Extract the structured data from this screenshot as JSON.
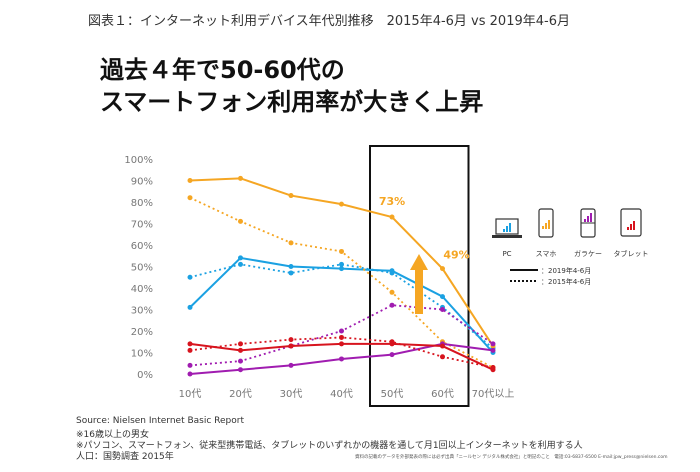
{
  "figure_title": "図表１：インターネット利用デバイス年代別推移　2015年4-6月 vs 2019年4-6月",
  "headline": {
    "line1": "過去４年で50-60代の",
    "line2": "スマートフォン利用率が大きく上昇"
  },
  "chart_data": {
    "type": "line",
    "categories": [
      "10代",
      "20代",
      "30代",
      "40代",
      "50代",
      "60代",
      "70代以上"
    ],
    "y_ticks": [
      "0%",
      "10%",
      "20%",
      "30%",
      "40%",
      "50%",
      "60%",
      "70%",
      "80%",
      "90%",
      "100%"
    ],
    "ylim": [
      0,
      100
    ],
    "highlight_categories": [
      "50代",
      "60代"
    ],
    "series": [
      {
        "name": "PC 2019年4-6月",
        "device": "PC",
        "period": "2019年4-6月",
        "style": "solid",
        "color": "#1BA1E2",
        "values": [
          31,
          54,
          50,
          49,
          48,
          36,
          10
        ]
      },
      {
        "name": "PC 2015年4-6月",
        "device": "PC",
        "period": "2015年4-6月",
        "style": "dotted",
        "color": "#1BA1E2",
        "values": [
          45,
          51,
          47,
          51,
          47,
          31,
          12
        ]
      },
      {
        "name": "スマホ 2019年4-6月",
        "device": "スマホ",
        "period": "2019年4-6月",
        "style": "solid",
        "color": "#F5A623",
        "values": [
          90,
          91,
          83,
          79,
          73,
          49,
          13
        ]
      },
      {
        "name": "スマホ 2015年4-6月",
        "device": "スマホ",
        "period": "2015年4-6月",
        "style": "dotted",
        "color": "#F5A623",
        "values": [
          82,
          71,
          61,
          57,
          38,
          15,
          3
        ]
      },
      {
        "name": "ガラケー 2019年4-6月",
        "device": "ガラケー",
        "period": "2019年4-6月",
        "style": "solid",
        "color": "#A01CB0",
        "values": [
          0,
          2,
          4,
          7,
          9,
          14,
          11
        ]
      },
      {
        "name": "ガラケー 2015年4-6月",
        "device": "ガラケー",
        "period": "2015年4-6月",
        "style": "dotted",
        "color": "#A01CB0",
        "values": [
          4,
          6,
          13,
          20,
          32,
          30,
          14
        ]
      },
      {
        "name": "タブレット 2019年4-6月",
        "device": "タブレット",
        "period": "2019年4-6月",
        "style": "solid",
        "color": "#D7141E",
        "values": [
          14,
          11,
          13,
          14,
          14,
          13,
          2
        ]
      },
      {
        "name": "タブレット 2015年4-6月",
        "device": "タブレット",
        "period": "2015年4-6月",
        "style": "dotted",
        "color": "#D7141E",
        "values": [
          11,
          14,
          16,
          17,
          15,
          8,
          3
        ]
      }
    ],
    "annotations": [
      {
        "text": "73%",
        "category": "50代",
        "value": 73
      },
      {
        "text": "49%",
        "category": "60代",
        "value": 49
      }
    ],
    "legend": {
      "devices": [
        {
          "label": "PC",
          "icon": "laptop-icon",
          "color": "#1BA1E2"
        },
        {
          "label": "スマホ",
          "icon": "smartphone-icon",
          "color": "#F5A623"
        },
        {
          "label": "ガラケー",
          "icon": "feature-phone-icon",
          "color": "#A01CB0"
        },
        {
          "label": "タブレット",
          "icon": "tablet-icon",
          "color": "#D7141E"
        }
      ],
      "periods": [
        {
          "label": "：2019年4-6月",
          "style": "solid"
        },
        {
          "label": "：2015年4-6月",
          "style": "dotted"
        }
      ],
      "placement": "right"
    }
  },
  "notes": {
    "source": "Source: Nielsen Internet Basic Report",
    "note1": "※16歳以上の男女",
    "note2": "※パソコン、スマートフォン、従来型携帯電話、タブレットのいずれかの機器を通して月1回以上インターネットを利用する人",
    "population": "人口：国勢調査 2015年"
  },
  "fine_print": "資料の記載のデータを外部発表の際には必ず出典「ニールセン デジタル株式会社」と明記のこと　電話:03-6837-6500 E-mail:jpw_press@nielsen.com"
}
